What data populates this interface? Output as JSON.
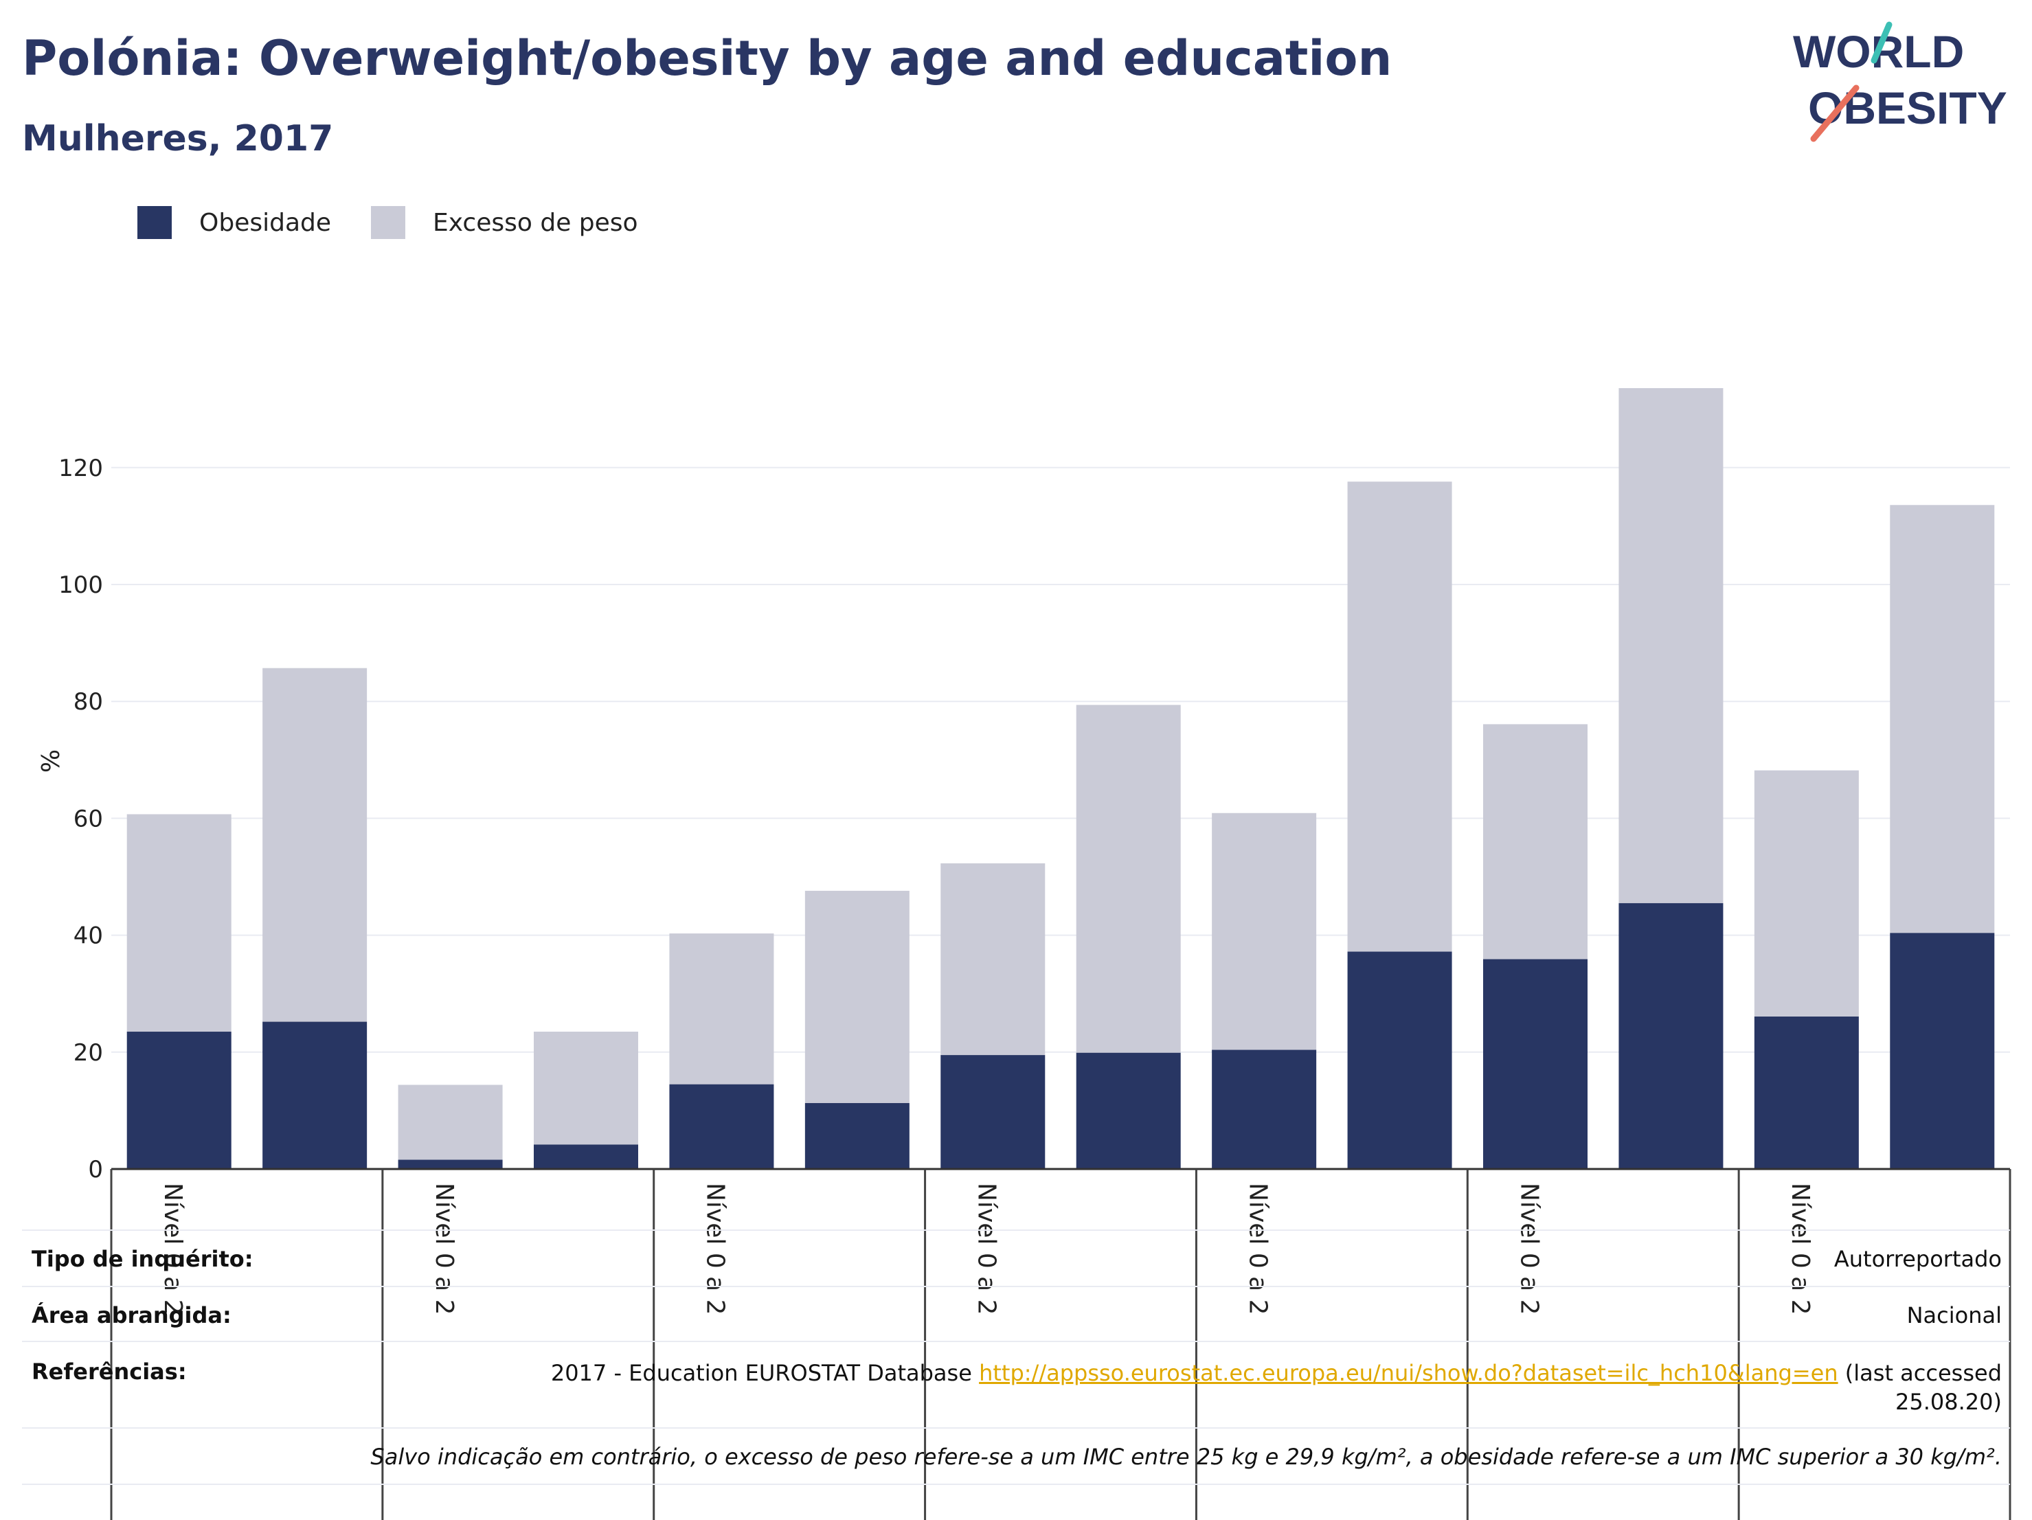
{
  "header": {
    "title": "Polónia: Overweight/obesity by age and education",
    "subtitle": "Mulheres, 2017"
  },
  "logo": {
    "line1": "WORLD",
    "line2": "OBESITY",
    "accent_colors": [
      "#3cbfb4",
      "#e8705d"
    ],
    "text_color": "#2a3664"
  },
  "colors": {
    "obesity": "#283663",
    "overweight": "#cacbd7",
    "gridline": "#e9ebf2",
    "axis": "#333333"
  },
  "chart_data": {
    "type": "bar",
    "stacked": true,
    "ylabel": "%",
    "ylim": [
      0,
      135
    ],
    "yticks": [
      0,
      20,
      40,
      60,
      80,
      100,
      120
    ],
    "grid": true,
    "legend_position": "top-left",
    "group_labels": [
      "Nível 0 a 2",
      "Nível 0 a 2",
      "Nível 0 a 2",
      "Nível 0 a 2",
      "Nível 0 a 2",
      "Nível 0 a 2",
      "Nível 0 a 2"
    ],
    "series": [
      {
        "name": "Obesidade",
        "values": [
          23.5,
          25.2,
          1.6,
          4.2,
          14.5,
          11.3,
          19.5,
          19.9,
          20.4,
          37.2,
          35.9,
          45.5,
          26.1,
          40.4
        ]
      },
      {
        "name": "Excesso de peso",
        "values": [
          37.2,
          60.5,
          12.8,
          19.3,
          25.8,
          36.3,
          32.8,
          59.5,
          40.5,
          80.4,
          40.2,
          88.1,
          42.1,
          73.2
        ]
      }
    ]
  },
  "footer": {
    "survey_label": "Tipo de inquérito:",
    "survey_value": "Autorreportado",
    "area_label": "Área abrangida:",
    "area_value": "Nacional",
    "refs_label": "Referências:",
    "refs_prefix": "2017 - Education EUROSTAT Database",
    "refs_link": "http://appsso.eurostat.ec.europa.eu/nui/show.do?dataset=ilc_hch10&lang=en",
    "refs_suffix": "(last accessed 25.08.20)",
    "note": "Salvo indicação em contrário, o excesso de peso refere-se a um IMC entre 25 kg e 29,9 kg/m², a obesidade refere-se a um IMC superior a 30 kg/m²."
  }
}
